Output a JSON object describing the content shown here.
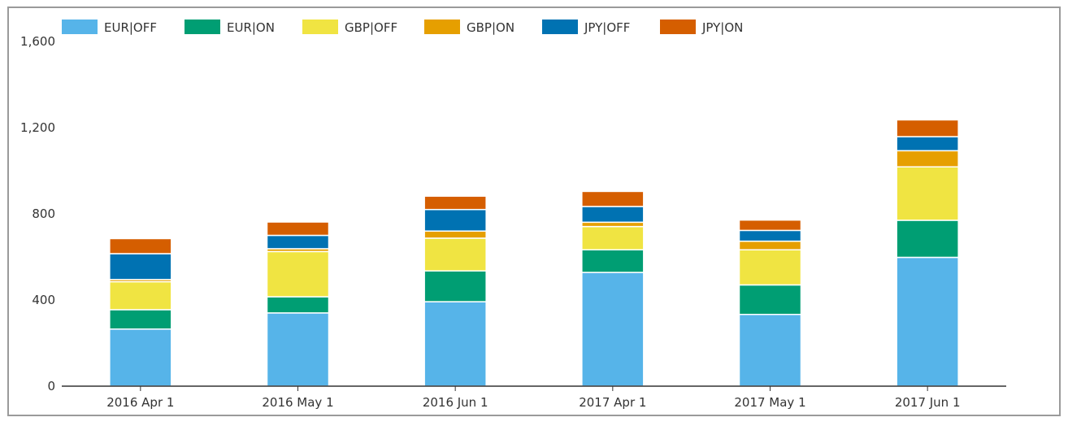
{
  "chart_data": {
    "type": "bar",
    "stacked": true,
    "categories": [
      "2016 Apr 1",
      "2016 May 1",
      "2016 Jun 1",
      "2017 Apr 1",
      "2017 May 1",
      "2017 Jun 1"
    ],
    "series": [
      {
        "name": "EUR|OFF",
        "color": "#56B4E9",
        "values": [
          265,
          340,
          392,
          528,
          333,
          598
        ]
      },
      {
        "name": "EUR|ON",
        "color": "#009E73",
        "values": [
          90,
          75,
          143,
          105,
          137,
          172
        ]
      },
      {
        "name": "GBP|OFF",
        "color": "#F0E442",
        "values": [
          130,
          210,
          152,
          108,
          163,
          248
        ]
      },
      {
        "name": "GBP|ON",
        "color": "#E69F00",
        "values": [
          10,
          13,
          33,
          20,
          40,
          75
        ]
      },
      {
        "name": "JPY|OFF",
        "color": "#0072B2",
        "values": [
          120,
          62,
          100,
          73,
          50,
          65
        ]
      },
      {
        "name": "JPY|ON",
        "color": "#D55E00",
        "values": [
          70,
          62,
          62,
          70,
          48,
          78
        ]
      }
    ],
    "ylim": [
      0,
      1600
    ],
    "yticks": [
      0,
      400,
      800,
      1200,
      1600
    ],
    "ytick_labels": [
      "0",
      "400",
      "800",
      "1,200",
      "1,600"
    ],
    "legend_position": "top-left",
    "grid": false
  }
}
